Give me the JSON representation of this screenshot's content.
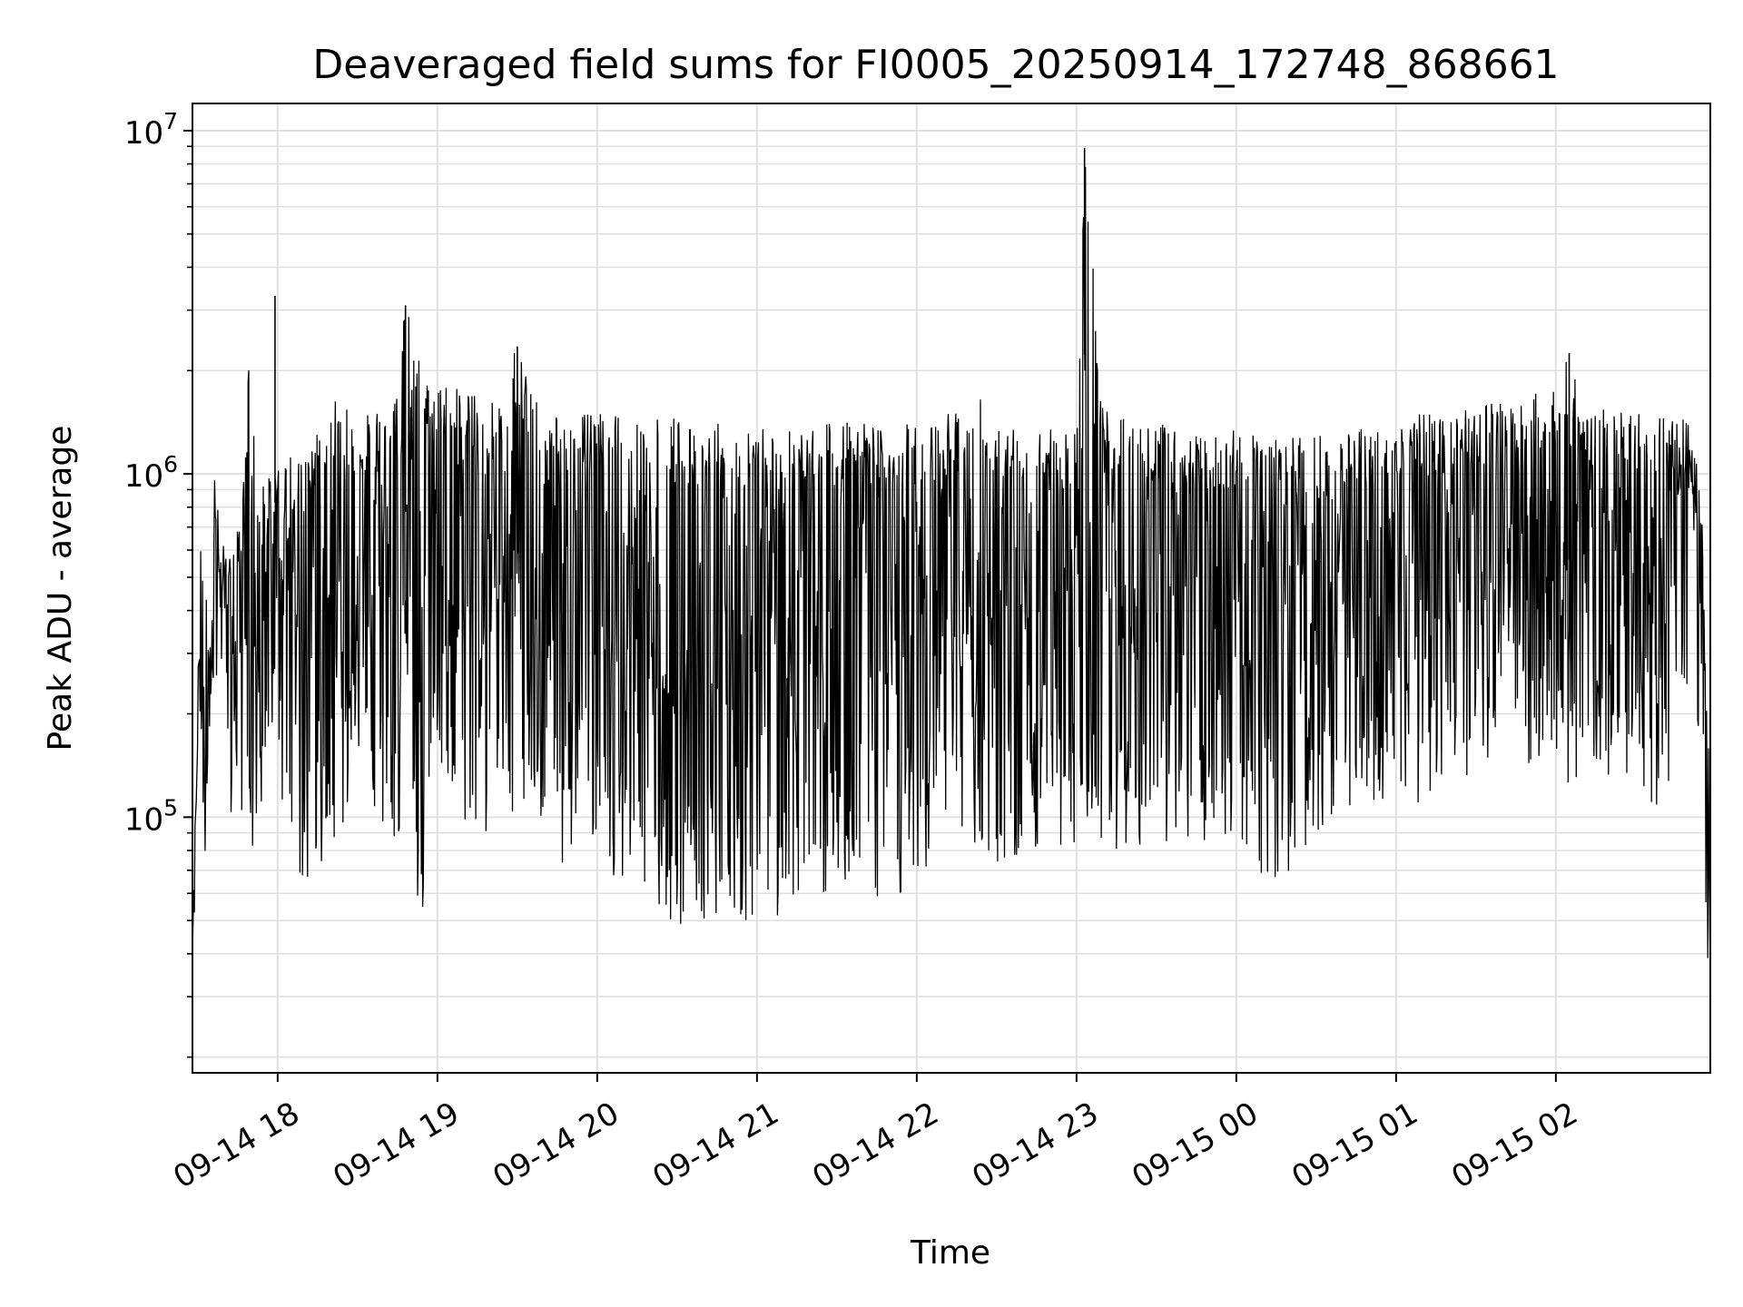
{
  "chart_data": {
    "type": "line",
    "title": "Deaveraged field sums for FI0005_20250914_172748_868661",
    "xlabel": "Time",
    "ylabel": "Peak ADU - average",
    "yscale": "log",
    "grid": true,
    "legend": "none",
    "x_range": [
      "09-14 17:28",
      "09-15 02:58"
    ],
    "ylim": [
      18000,
      12000000
    ],
    "x_ticks": [
      {
        "time": "09-14 18:00",
        "label": "09-14 18"
      },
      {
        "time": "09-14 19:00",
        "label": "09-14 19"
      },
      {
        "time": "09-14 20:00",
        "label": "09-14 20"
      },
      {
        "time": "09-14 21:00",
        "label": "09-14 21"
      },
      {
        "time": "09-14 22:00",
        "label": "09-14 22"
      },
      {
        "time": "09-14 23:00",
        "label": "09-14 23"
      },
      {
        "time": "09-15 00:00",
        "label": "09-15 00"
      },
      {
        "time": "09-15 01:00",
        "label": "09-15 01"
      },
      {
        "time": "09-15 02:00",
        "label": "09-15 02"
      }
    ],
    "y_ticks": [
      {
        "value": 100000,
        "base": "10",
        "exp": "5"
      },
      {
        "value": 1000000,
        "base": "10",
        "exp": "6"
      },
      {
        "value": 10000000,
        "base": "10",
        "exp": "7"
      }
    ],
    "line_color": "#000000",
    "grid_color": "#e0e0e0",
    "series": [
      {
        "name": "",
        "x": [
          "09-14 17:28",
          "09-14 17:31",
          "09-14 17:33",
          "09-14 17:35",
          "09-14 17:38",
          "09-14 17:40",
          "09-14 17:43",
          "09-14 17:45",
          "09-14 17:47",
          "09-14 17:50",
          "09-14 17:52",
          "09-14 17:54",
          "09-14 17:57",
          "09-14 17:59",
          "09-14 18:05",
          "09-14 18:10",
          "09-14 18:18",
          "09-14 18:26",
          "09-14 18:28",
          "09-14 18:35",
          "09-14 18:42",
          "09-14 18:48",
          "09-14 18:55",
          "09-14 19:00",
          "09-14 19:10",
          "09-14 19:20",
          "09-14 19:30",
          "09-14 19:40",
          "09-14 19:50",
          "09-14 20:00",
          "09-14 20:10",
          "09-14 20:20",
          "09-14 20:30",
          "09-14 20:40",
          "09-14 20:50",
          "09-14 21:00",
          "09-14 21:10",
          "09-14 21:20",
          "09-14 21:30",
          "09-14 21:40",
          "09-14 21:50",
          "09-14 22:00",
          "09-14 22:10",
          "09-14 22:20",
          "09-14 22:30",
          "09-14 22:40",
          "09-14 22:50",
          "09-14 23:00",
          "09-14 23:03",
          "09-14 23:10",
          "09-14 23:20",
          "09-14 23:30",
          "09-14 23:40",
          "09-14 23:50",
          "09-15 00:00",
          "09-15 00:10",
          "09-15 00:20",
          "09-15 00:30",
          "09-15 00:40",
          "09-15 00:50",
          "09-15 01:00",
          "09-15 01:10",
          "09-15 01:20",
          "09-15 01:30",
          "09-15 01:40",
          "09-15 01:50",
          "09-15 02:00",
          "09-15 02:05",
          "09-15 02:10",
          "09-15 02:20",
          "09-15 02:30",
          "09-15 02:40",
          "09-15 02:48",
          "09-15 02:52",
          "09-15 02:55",
          "09-15 02:58"
        ],
        "upper": [
          40000,
          600000,
          500000,
          1400000,
          700000,
          600000,
          550000,
          800000,
          900000,
          3300000,
          800000,
          900000,
          1000000,
          1000000,
          1200000,
          1100000,
          1500000,
          1800000,
          1400000,
          1500000,
          1600000,
          3100000,
          2100000,
          1800000,
          1800000,
          1600000,
          2350000,
          1500000,
          1500000,
          1500000,
          1600000,
          1450000,
          1450000,
          1400000,
          1400000,
          1400000,
          1400000,
          1400000,
          1500000,
          1400000,
          1400000,
          1400000,
          1450000,
          1900000,
          1450000,
          1400000,
          1500000,
          1400000,
          8900000,
          1600000,
          1500000,
          1400000,
          1400000,
          1350000,
          1350000,
          1300000,
          1300000,
          1300000,
          1350000,
          1400000,
          1450000,
          1500000,
          1550000,
          1600000,
          1600000,
          1700000,
          1750000,
          2250000,
          1600000,
          1600000,
          1500000,
          1450000,
          1500000,
          1250000,
          700000,
          100000
        ],
        "lower": [
          30000,
          180000,
          40000,
          250000,
          170000,
          200000,
          90000,
          120000,
          100000,
          75000,
          80000,
          90000,
          120000,
          110000,
          100000,
          55000,
          75000,
          100000,
          150000,
          110000,
          70000,
          75000,
          45000,
          95000,
          90000,
          80000,
          90000,
          90000,
          65000,
          70000,
          60000,
          55000,
          45000,
          50000,
          55000,
          45000,
          50000,
          55000,
          60000,
          50000,
          60000,
          58000,
          90000,
          80000,
          70000,
          65000,
          70000,
          80000,
          100000,
          80000,
          75000,
          72000,
          80000,
          85000,
          90000,
          60000,
          70000,
          80000,
          100000,
          100000,
          110000,
          110000,
          130000,
          130000,
          150000,
          140000,
          160000,
          100000,
          150000,
          130000,
          120000,
          100000,
          200000,
          300000,
          100000,
          25000
        ]
      }
    ]
  }
}
